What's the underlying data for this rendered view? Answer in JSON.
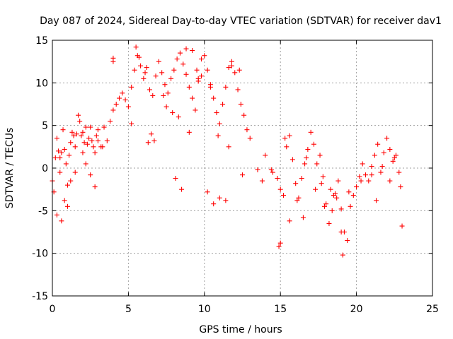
{
  "chart_data": {
    "type": "scatter",
    "title": "Day 087 of 2024, Sidereal Day-to-day VTEC variation (SDTVAR) for receiver dav1",
    "xlabel": "GPS time / hours",
    "ylabel": "SDTVAR / TECUs",
    "xlim": [
      0,
      25
    ],
    "ylim": [
      -15,
      15
    ],
    "xticks": [
      "0",
      "5",
      "10",
      "15",
      "20",
      "25"
    ],
    "yticks": [
      "-15",
      "-10",
      "-5",
      "0",
      "5",
      "10",
      "15"
    ],
    "grid": true,
    "marker": "+",
    "series_color": "#ff0000",
    "series": [
      {
        "name": "SDTVAR",
        "x": [
          0.0,
          0.1,
          0.2,
          0.3,
          0.4,
          0.5,
          0.6,
          0.7,
          0.8,
          0.9,
          1.0,
          1.1,
          1.2,
          1.3,
          1.4,
          1.5,
          1.6,
          1.7,
          1.8,
          1.9,
          2.0,
          2.1,
          2.2,
          2.3,
          2.4,
          2.5,
          2.6,
          2.7,
          2.8,
          2.9,
          3.0,
          3.2,
          3.4,
          3.6,
          3.8,
          4.0,
          4.2,
          4.4,
          4.6,
          4.8,
          5.0,
          5.2,
          5.4,
          5.6,
          5.8,
          6.0,
          6.2,
          6.4,
          6.6,
          6.8,
          7.0,
          7.2,
          7.4,
          7.6,
          7.8,
          8.0,
          8.2,
          8.4,
          8.6,
          8.8,
          9.0,
          9.2,
          9.4,
          9.6,
          9.8,
          10.0,
          10.2,
          10.4,
          10.6,
          10.8,
          11.0,
          11.2,
          11.4,
          11.6,
          11.8,
          12.0,
          12.2,
          12.4,
          12.6,
          12.8,
          13.0,
          13.5,
          14.0,
          14.5,
          14.8,
          15.0,
          15.2,
          15.4,
          15.6,
          15.8,
          16.0,
          16.2,
          16.4,
          16.6,
          16.8,
          17.0,
          17.2,
          17.4,
          17.6,
          17.8,
          18.0,
          18.2,
          18.4,
          18.6,
          18.8,
          19.0,
          19.2,
          19.4,
          19.6,
          19.8,
          20.0,
          20.2,
          20.4,
          20.6,
          20.8,
          21.0,
          21.2,
          21.4,
          21.6,
          21.8,
          22.0,
          22.2,
          22.4,
          22.6,
          22.8,
          23.0,
          0.3,
          0.6,
          1.0,
          1.5,
          2.0,
          2.5,
          3.0,
          4.0,
          4.0,
          5.5,
          5.7,
          6.1,
          6.5,
          6.7,
          7.5,
          7.9,
          8.1,
          8.5,
          8.8,
          9.2,
          9.5,
          9.8,
          10.2,
          10.6,
          11.0,
          11.4,
          11.8,
          12.3,
          14.9,
          15.0,
          15.6,
          16.1,
          16.5,
          17.3,
          17.9,
          18.5,
          19.0,
          19.1,
          21.3,
          22.2,
          22.9,
          0.5,
          0.8,
          1.2,
          2.2,
          2.8,
          3.3,
          5.2,
          6.3,
          7.3,
          8.3,
          9.0,
          9.6,
          10.4,
          10.9,
          11.6,
          12.5,
          13.8,
          14.4,
          15.3,
          16.7,
          17.7,
          18.3,
          18.7,
          19.5,
          20.3,
          21.0,
          21.7,
          22.5
        ],
        "y": [
          -1.5,
          -2.8,
          1.2,
          3.5,
          2.0,
          -0.5,
          1.8,
          4.5,
          2.2,
          0.5,
          -2.0,
          1.5,
          3.0,
          4.2,
          3.8,
          2.5,
          4.0,
          6.2,
          5.5,
          3.8,
          4.2,
          3.0,
          0.5,
          2.8,
          3.5,
          4.8,
          3.2,
          2.5,
          1.8,
          3.8,
          4.5,
          2.5,
          4.8,
          3.2,
          5.5,
          6.8,
          7.5,
          8.2,
          8.8,
          8.0,
          7.2,
          9.5,
          11.5,
          13.2,
          12.0,
          10.5,
          11.8,
          9.2,
          8.5,
          10.8,
          12.5,
          11.2,
          9.8,
          8.8,
          10.5,
          11.5,
          12.8,
          13.5,
          12.2,
          11.0,
          9.5,
          8.2,
          6.8,
          10.5,
          12.8,
          13.2,
          11.5,
          9.8,
          8.2,
          6.5,
          5.2,
          7.5,
          9.5,
          11.8,
          12.5,
          11.2,
          9.2,
          7.5,
          6.2,
          4.5,
          3.5,
          -0.2,
          1.5,
          -0.5,
          -1.2,
          -2.5,
          -3.2,
          2.5,
          3.8,
          1.0,
          -1.8,
          -3.5,
          -1.2,
          0.5,
          2.2,
          4.2,
          2.8,
          0.5,
          1.5,
          -1.0,
          -4.2,
          -6.5,
          -5.0,
          -3.0,
          -1.5,
          -4.8,
          -7.5,
          -8.5,
          -4.5,
          -3.2,
          -2.2,
          -1.0,
          0.5,
          -0.8,
          -1.5,
          0.2,
          1.5,
          2.8,
          -0.5,
          1.8,
          3.5,
          2.2,
          0.8,
          1.5,
          -0.5,
          -6.8,
          -5.5,
          -6.2,
          -4.5,
          -0.5,
          1.8,
          -0.8,
          3.2,
          12.5,
          12.9,
          14.2,
          13.0,
          11.2,
          4.0,
          3.2,
          7.2,
          6.5,
          -1.2,
          -2.5,
          14.0,
          13.8,
          11.5,
          10.8,
          -2.8,
          -4.2,
          -3.5,
          -3.8,
          12.0,
          11.5,
          -9.2,
          -8.8,
          -6.2,
          -3.8,
          -5.8,
          -2.5,
          -4.5,
          -3.2,
          -7.5,
          -10.2,
          -3.8,
          -1.5,
          -2.2,
          1.2,
          -3.8,
          -1.5,
          4.8,
          -2.2,
          2.5,
          5.2,
          3.0,
          8.5,
          6.0,
          4.2,
          10.2,
          9.5,
          3.8,
          2.5,
          -0.8,
          -1.5,
          -0.2,
          3.5,
          1.2,
          -1.8,
          -2.5,
          -3.5,
          -2.8,
          -1.5,
          -0.8,
          0.2,
          1.2
        ]
      }
    ]
  }
}
